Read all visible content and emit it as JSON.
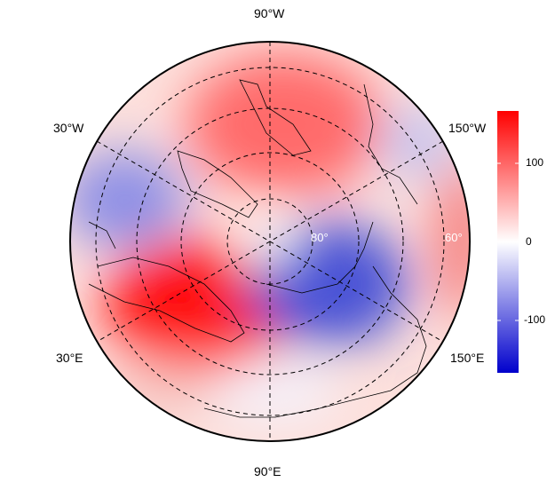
{
  "map": {
    "projection": "north polar stereographic",
    "longitude_labels": {
      "top": "90°W",
      "bottom": "90°E",
      "upper_left": "30°W",
      "upper_right": "150°W",
      "lower_left": "30°E",
      "lower_right": "150°E"
    },
    "latitude_labels": [
      "80°",
      "60°"
    ]
  },
  "colorbar": {
    "min": -165,
    "max": 165,
    "ticks": [
      "100",
      "0",
      "-100"
    ],
    "tick_values": [
      100,
      0,
      -100
    ],
    "colors": {
      "low": "#0000cc",
      "mid": "#ffffff",
      "high": "#ff0000"
    }
  }
}
